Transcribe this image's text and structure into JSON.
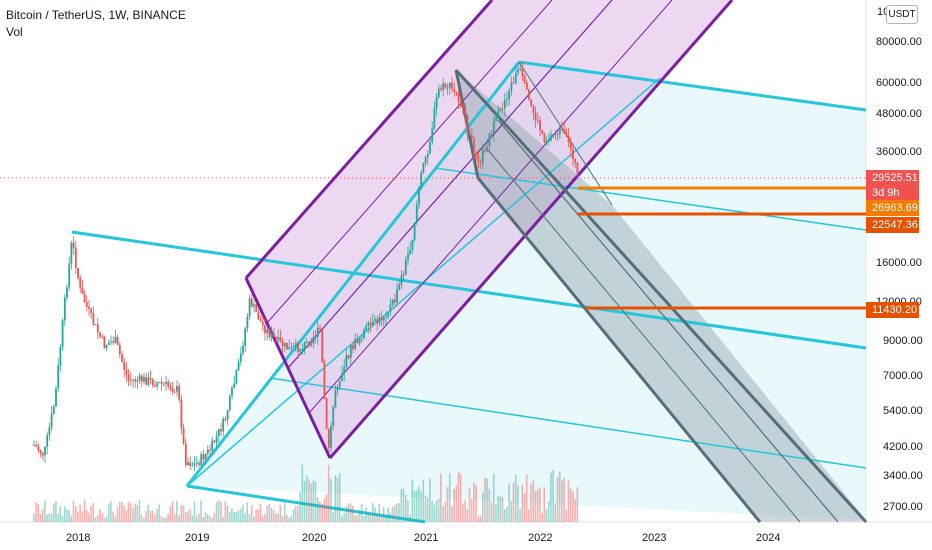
{
  "header": {
    "symbol_line": "Bitcoin / TetherUS, 1W, BINANCE",
    "indicator": "Vol",
    "currency_button": "USDT"
  },
  "price_axis": {
    "ticks": [
      "80000.00",
      "60000.00",
      "48000.00",
      "36000.00",
      "16000.00",
      "12000.00",
      "9000.00",
      "7000.00",
      "5400.00",
      "4200.00",
      "3400.00",
      "2700.00"
    ],
    "top_partial": "10"
  },
  "time_axis": {
    "ticks": [
      "2018",
      "2019",
      "2020",
      "2021",
      "2022",
      "2023",
      "2024"
    ]
  },
  "price_labels": [
    {
      "value": "29525.51",
      "color": "#ef5350",
      "sub": "3d 9h"
    },
    {
      "value": "26963.69",
      "color": "#f57c00"
    },
    {
      "value": "22547.36",
      "color": "#e65100"
    },
    {
      "value": "11430.20",
      "color": "#e65100"
    }
  ],
  "chart_data": {
    "type": "candlestick",
    "ticks_y": [
      2700,
      3400,
      4200,
      5400,
      7000,
      9000,
      12000,
      16000,
      36000,
      48000,
      60000,
      80000
    ],
    "ticks_x": [
      "2018",
      "2019",
      "2020",
      "2021",
      "2022",
      "2023",
      "2024"
    ],
    "last_price": 29525.51,
    "horizontal_levels": [
      26963.69,
      22547.36,
      11430.2
    ],
    "colors": {
      "up": "#26a69a",
      "down": "#ef5350",
      "pitchfork_purple": "#7b1fa2",
      "pitchfork_cyan": "#26c6da",
      "pitchfork_gray": "#546e7a"
    }
  }
}
